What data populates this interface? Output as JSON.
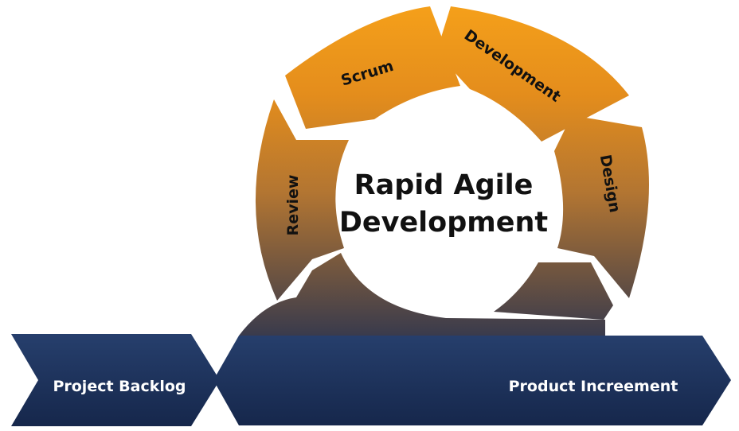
{
  "diagram": {
    "center_title_line1": "Rapid Agile",
    "center_title_line2": "Development",
    "cycle_segments": [
      {
        "id": "scrum",
        "label": "Scrum"
      },
      {
        "id": "development",
        "label": "Development"
      },
      {
        "id": "design",
        "label": "Design"
      },
      {
        "id": "review",
        "label": "Review"
      }
    ],
    "input_arrow_label": "Project Backlog",
    "output_arrow_label": "Product Increement"
  },
  "colors": {
    "orange_top": "#F0951A",
    "orange_mid": "#B9782C",
    "slate_mid": "#4F4A4C",
    "navy": "#1C3260",
    "navy_dark": "#15264A",
    "text_dark": "#111111",
    "text_light": "#FFFFFF"
  }
}
